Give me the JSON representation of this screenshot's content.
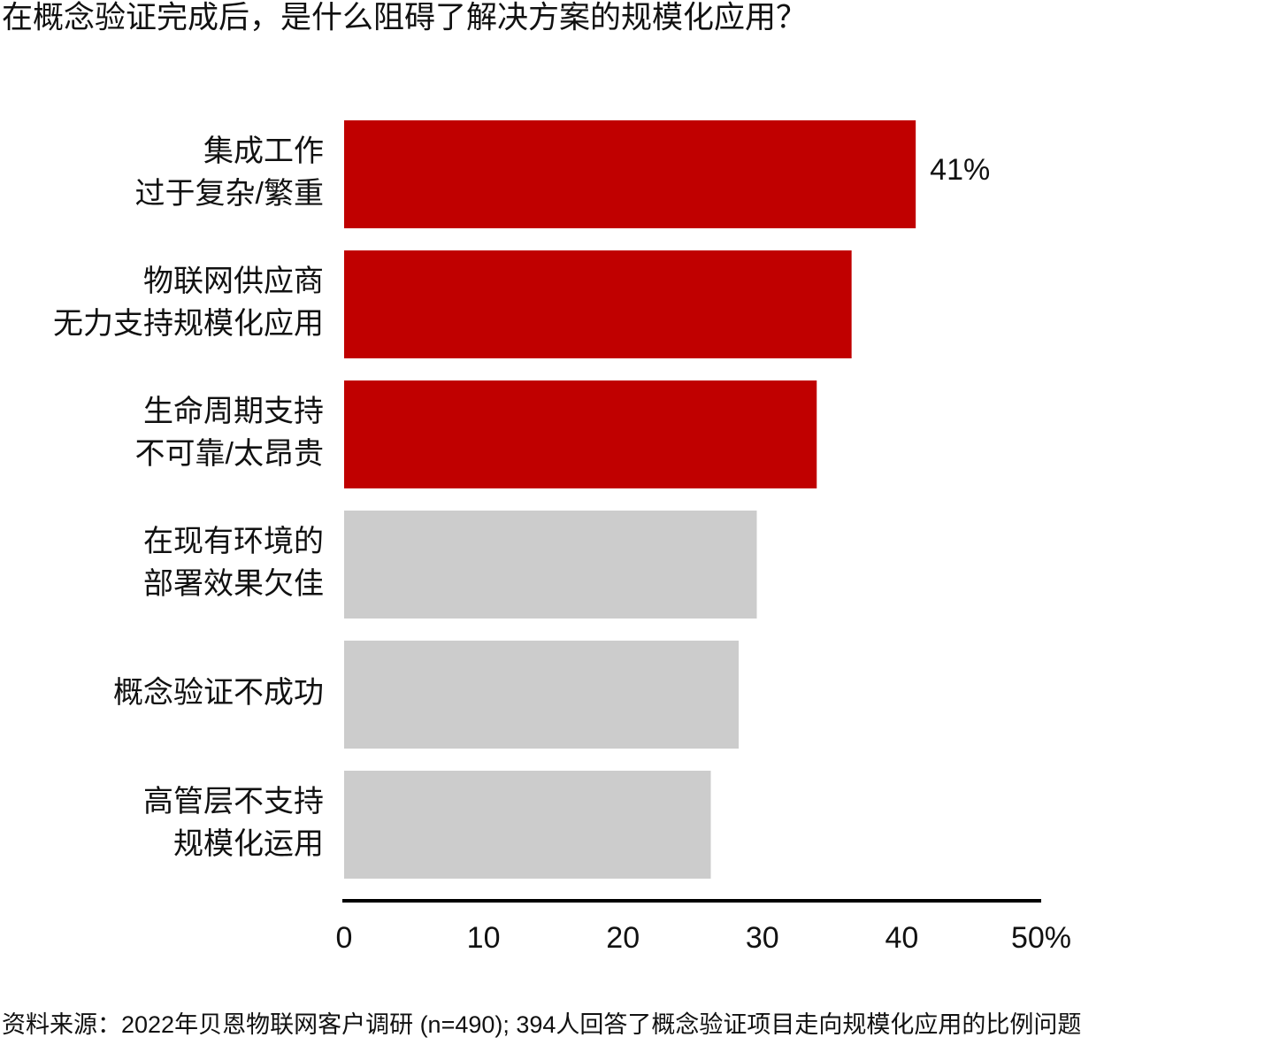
{
  "chart_data": {
    "type": "bar",
    "orientation": "horizontal",
    "title": "在概念验证完成后，是什么阻碍了解决方案的规模化应用？",
    "categories": [
      [
        "集成工作",
        "过于复杂/繁重"
      ],
      [
        "物联网供应商",
        "无力支持规模化应用"
      ],
      [
        "生命周期支持",
        "不可靠/太昂贵"
      ],
      [
        "在现有环境的",
        "部署效果欠佳"
      ],
      [
        "概念验证不成功"
      ],
      [
        "高管层不支持",
        "规模化运用"
      ]
    ],
    "values": [
      41,
      36.4,
      33.9,
      29.6,
      28.3,
      26.3
    ],
    "value_labels": [
      "41%",
      null,
      null,
      null,
      null,
      null
    ],
    "colors": [
      "#c00000",
      "#c00000",
      "#c00000",
      "#cccccc",
      "#cccccc",
      "#cccccc"
    ],
    "xlim": [
      0,
      50
    ],
    "xticks": [
      0,
      10,
      20,
      30,
      40,
      {
        "value": 50,
        "label": "50%"
      }
    ],
    "source": "资料来源：2022年贝恩物联网客户调研 (n=490); 394人回答了概念验证项目走向规模化应用的比例问题"
  }
}
